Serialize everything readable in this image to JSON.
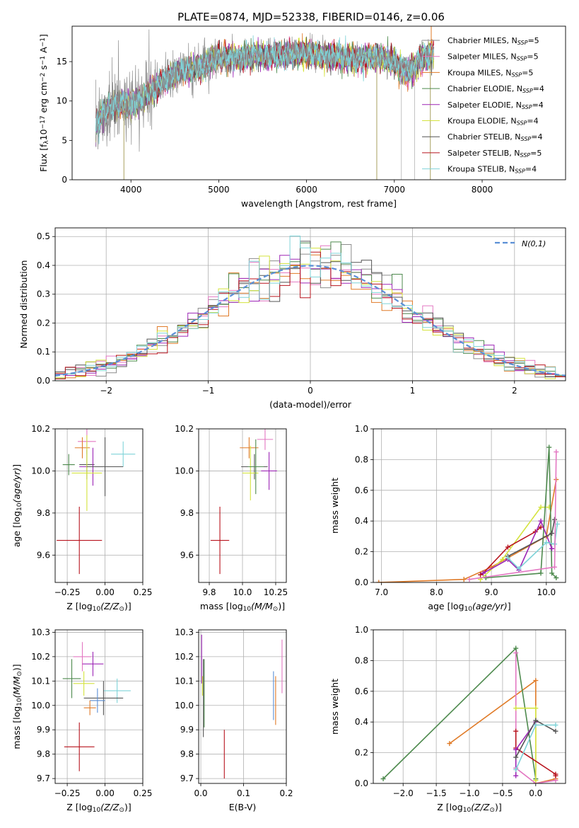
{
  "figure_title": "PLATE=0874, MJD=52338, FIBERID=0146, z=0.06",
  "legend_entries": [
    {
      "label": "Chabrier MILES, N_SSP=5",
      "color": "#8c8c8c"
    },
    {
      "label": "Salpeter MILES, N_SSP=5",
      "color": "#e377c2"
    },
    {
      "label": "Kroupa MILES, N_SSP=5",
      "color": "#e07b28"
    },
    {
      "label": "Chabrier ELODIE, N_SSP=4",
      "color": "#4e8a4e"
    },
    {
      "label": "Salpeter ELODIE, N_SSP=4",
      "color": "#9d26b6"
    },
    {
      "label": "Kroupa ELODIE, N_SSP=4",
      "color": "#d4e33d"
    },
    {
      "label": "Chabrier STELIB, N_SSP=4",
      "color": "#555555"
    },
    {
      "label": "Salpeter STELIB, N_SSP=5",
      "color": "#b8141e"
    },
    {
      "label": "Kroupa STELIB, N_SSP=4",
      "color": "#7fd3d8"
    }
  ],
  "chart_data": [
    {
      "id": "spectrum",
      "type": "line",
      "xlabel": "wavelength [Angstrom, rest frame]",
      "ylabel": "Flux [f_λ 10^-17 erg cm^-2 s^-1 A^-1]",
      "xlim": [
        3330,
        8950
      ],
      "ylim": [
        0,
        19.5
      ],
      "xticks": [
        4000,
        5000,
        6000,
        7000,
        8000
      ],
      "yticks": [
        0,
        5,
        10,
        15
      ],
      "continuum": {
        "x": [
          3600,
          3700,
          3800,
          3900,
          4000,
          4100,
          4200,
          4300,
          4400,
          4500,
          4600,
          4700,
          4800,
          4900,
          5000,
          5200,
          5400,
          5600,
          5800,
          6000,
          6200,
          6400,
          6600,
          6800,
          6900,
          7000,
          7100,
          7200,
          7300,
          7400
        ],
        "y": [
          7.0,
          8.7,
          9.3,
          9.7,
          9.6,
          10.2,
          11.0,
          11.7,
          12.7,
          13.6,
          13.9,
          14.1,
          14.2,
          15.1,
          15.6,
          15.5,
          15.8,
          15.7,
          15.9,
          16.1,
          15.8,
          15.6,
          15.4,
          15.6,
          15.4,
          15.0,
          14.0,
          14.0,
          15.4,
          15.9
        ]
      },
      "spikes_down": [
        3920,
        6800,
        7410
      ],
      "spikes_up": [
        7420
      ]
    },
    {
      "id": "residuals",
      "type": "step",
      "xlabel": "(data-model)/error",
      "ylabel": "Normed distribution",
      "xlim": [
        -2.5,
        2.5
      ],
      "ylim": [
        0,
        0.53
      ],
      "xticks": [
        -2,
        -1,
        0,
        1,
        2
      ],
      "yticks": [
        0.0,
        0.1,
        0.2,
        0.3,
        0.4,
        0.5
      ],
      "gaussian_label": "N(0,1)",
      "gaussian_color": "#5b8fd6",
      "bin_width": 0.1
    },
    {
      "id": "age_vs_Z",
      "type": "errorbar",
      "xlabel": "Z [log10(Z/Z_sun)]",
      "ylabel": "age [log10(age/yr)]",
      "xlim": [
        -0.33,
        0.25
      ],
      "ylim": [
        9.47,
        10.2
      ],
      "xticks": [
        -0.25,
        0.0,
        0.25
      ],
      "yticks": [
        9.6,
        9.8,
        10.0,
        10.2
      ],
      "points": [
        {
          "x": -0.12,
          "y": 10.14,
          "xerr": 0.06,
          "yerr": 0.06,
          "color": "#e377c2"
        },
        {
          "x": -0.15,
          "y": 10.11,
          "xerr": 0.05,
          "yerr": 0.05,
          "color": "#e07b28"
        },
        {
          "x": 0.12,
          "y": 10.08,
          "xerr": 0.08,
          "yerr": 0.06,
          "color": "#7fd3d8"
        },
        {
          "x": -0.24,
          "y": 10.03,
          "xerr": 0.04,
          "yerr": 0.05,
          "color": "#4e8a4e"
        },
        {
          "x": -0.12,
          "y": 10.03,
          "xerr": 0.05,
          "yerr": 0.07,
          "color": "#555555"
        },
        {
          "x": -0.08,
          "y": 10.02,
          "xerr": 0.09,
          "yerr": 0.09,
          "color": "#9d26b6"
        },
        {
          "x": -0.12,
          "y": 9.99,
          "xerr": 0.1,
          "yerr": 0.18,
          "color": "#d4e33d"
        },
        {
          "x": 0.0,
          "y": 10.02,
          "xerr": 0.12,
          "yerr": 0.14,
          "color": "#555555"
        },
        {
          "x": -0.17,
          "y": 9.67,
          "xerr": 0.15,
          "yerr": 0.16,
          "color": "#b8141e"
        }
      ]
    },
    {
      "id": "age_vs_mass",
      "type": "errorbar",
      "xlabel": "mass [log10(M/M_sun)]",
      "ylabel": "",
      "xlim": [
        9.67,
        10.33
      ],
      "ylim": [
        9.47,
        10.2
      ],
      "xticks": [
        9.75,
        10.0,
        10.25
      ],
      "yticks": [
        9.6,
        9.8,
        10.0,
        10.2
      ],
      "points": [
        {
          "x": 10.17,
          "y": 10.15,
          "xerr": 0.06,
          "yerr": 0.05,
          "color": "#e377c2"
        },
        {
          "x": 10.05,
          "y": 10.11,
          "xerr": 0.07,
          "yerr": 0.05,
          "color": "#e07b28"
        },
        {
          "x": 10.09,
          "y": 10.02,
          "xerr": 0.1,
          "yerr": 0.06,
          "color": "#555555"
        },
        {
          "x": 10.2,
          "y": 10.0,
          "xerr": 0.06,
          "yerr": 0.09,
          "color": "#9d26b6"
        },
        {
          "x": 10.06,
          "y": 9.99,
          "xerr": 0.06,
          "yerr": 0.13,
          "color": "#d4e33d"
        },
        {
          "x": 10.1,
          "y": 10.02,
          "xerr": 0.06,
          "yerr": 0.13,
          "color": "#4e8a4e"
        },
        {
          "x": 9.83,
          "y": 9.67,
          "xerr": 0.07,
          "yerr": 0.16,
          "color": "#b8141e"
        }
      ]
    },
    {
      "id": "weight_vs_age",
      "type": "line",
      "xlabel": "age [log10(age/yr)]",
      "ylabel": "mass weight",
      "xlim": [
        6.85,
        10.35
      ],
      "ylim": [
        0,
        1
      ],
      "xticks": [
        7,
        8,
        9,
        10
      ],
      "yticks": [
        0.0,
        0.2,
        0.4,
        0.6,
        0.8,
        1.0
      ],
      "series": [
        {
          "color": "#e07b28",
          "x": [
            6.95,
            8.5,
            9.0,
            10.0,
            10.18
          ],
          "y": [
            0.0,
            0.02,
            0.1,
            0.3,
            0.67
          ]
        },
        {
          "color": "#d4e33d",
          "x": [
            8.8,
            9.2,
            9.9,
            10.05
          ],
          "y": [
            0.02,
            0.15,
            0.49,
            0.49
          ]
        },
        {
          "color": "#4e8a4e",
          "x": [
            8.9,
            9.9,
            10.05,
            10.1,
            10.18
          ],
          "y": [
            0.03,
            0.06,
            0.88,
            0.06,
            0.03
          ]
        },
        {
          "color": "#b8141e",
          "x": [
            8.8,
            8.85,
            9.3,
            9.8,
            9.9
          ],
          "y": [
            0.05,
            0.06,
            0.23,
            0.33,
            0.36
          ]
        },
        {
          "color": "#9d26b6",
          "x": [
            8.85,
            9.3,
            9.5,
            9.9,
            10.1
          ],
          "y": [
            0.06,
            0.15,
            0.08,
            0.4,
            0.22
          ]
        },
        {
          "color": "#555555",
          "x": [
            9.3,
            10.1,
            10.15
          ],
          "y": [
            0.17,
            0.32,
            0.41
          ]
        },
        {
          "color": "#7fd3d8",
          "x": [
            9.3,
            9.5,
            10.0,
            10.15,
            10.2
          ],
          "y": [
            0.16,
            0.09,
            0.26,
            0.25,
            0.38
          ]
        },
        {
          "color": "#e377c2",
          "x": [
            8.6,
            10.15,
            10.18
          ],
          "y": [
            0.02,
            0.1,
            0.85
          ]
        }
      ]
    },
    {
      "id": "mass_vs_Z",
      "type": "errorbar",
      "xlabel": "Z [log10(Z/Z_sun)]",
      "ylabel": "mass [log10(M/M_sun)]",
      "xlim": [
        -0.33,
        0.25
      ],
      "ylim": [
        9.68,
        10.31
      ],
      "xticks": [
        -0.25,
        0.0,
        0.25
      ],
      "yticks": [
        9.7,
        9.8,
        9.9,
        10.0,
        10.1,
        10.2,
        10.3
      ],
      "points": [
        {
          "x": -0.15,
          "y": 10.2,
          "xerr": 0.06,
          "yerr": 0.06,
          "color": "#e377c2"
        },
        {
          "x": -0.08,
          "y": 10.17,
          "xerr": 0.07,
          "yerr": 0.05,
          "color": "#9d26b6"
        },
        {
          "x": -0.22,
          "y": 10.11,
          "xerr": 0.06,
          "yerr": 0.08,
          "color": "#4e8a4e"
        },
        {
          "x": -0.14,
          "y": 10.09,
          "xerr": 0.07,
          "yerr": 0.05,
          "color": "#d4e33d"
        },
        {
          "x": 0.08,
          "y": 10.06,
          "xerr": 0.09,
          "yerr": 0.05,
          "color": "#7fd3d8"
        },
        {
          "x": -0.01,
          "y": 10.03,
          "xerr": 0.13,
          "yerr": 0.07,
          "color": "#555555"
        },
        {
          "x": -0.05,
          "y": 10.02,
          "xerr": 0.05,
          "yerr": 0.05,
          "color": "#5b8fd6"
        },
        {
          "x": -0.1,
          "y": 9.99,
          "xerr": 0.04,
          "yerr": 0.03,
          "color": "#e07b28"
        },
        {
          "x": -0.17,
          "y": 9.83,
          "xerr": 0.1,
          "yerr": 0.1,
          "color": "#b8141e"
        }
      ]
    },
    {
      "id": "mass_vs_ebv",
      "type": "errorbar",
      "xlabel": "E(B-V)",
      "ylabel": "",
      "xlim": [
        -0.005,
        0.2
      ],
      "ylim": [
        9.68,
        10.31
      ],
      "xticks": [
        0.0,
        0.1,
        0.2
      ],
      "yticks": [
        9.7,
        9.8,
        9.9,
        10.0,
        10.1,
        10.2,
        10.3
      ],
      "points": [
        {
          "x": 0.002,
          "y": 10.19,
          "xerr": 0,
          "yerr": 0.1,
          "color": "#9d26b6"
        },
        {
          "x": 0.008,
          "y": 10.05,
          "xerr": 0,
          "yerr": 0.14,
          "color": "#4e8a4e"
        },
        {
          "x": 0.006,
          "y": 10.03,
          "xerr": 0,
          "yerr": 0.16,
          "color": "#555555"
        },
        {
          "x": 0.004,
          "y": 10.08,
          "xerr": 0,
          "yerr": 0.04,
          "color": "#d4e33d"
        },
        {
          "x": 0.055,
          "y": 9.8,
          "xerr": 0,
          "yerr": 0.1,
          "color": "#b8141e"
        },
        {
          "x": 0.17,
          "y": 10.04,
          "xerr": 0,
          "yerr": 0.1,
          "color": "#5b8fd6"
        },
        {
          "x": 0.175,
          "y": 10.02,
          "xerr": 0,
          "yerr": 0.1,
          "color": "#e07b28"
        },
        {
          "x": 0.19,
          "y": 10.16,
          "xerr": 0,
          "yerr": 0.11,
          "color": "#e377c2"
        }
      ]
    },
    {
      "id": "weight_vs_Z",
      "type": "line",
      "xlabel": "Z [log10(Z/Z_sun)]",
      "ylabel": "mass weight",
      "xlim": [
        -2.45,
        0.45
      ],
      "ylim": [
        0,
        1
      ],
      "xticks": [
        -2.0,
        -1.5,
        -1.0,
        -0.5,
        0.0
      ],
      "yticks": [
        0.0,
        0.2,
        0.4,
        0.6,
        0.8,
        1.0
      ],
      "series": [
        {
          "color": "#e07b28",
          "x": [
            -1.3,
            0.0,
            0.0,
            0.3
          ],
          "y": [
            0.26,
            0.67,
            0.0,
            0.03
          ]
        },
        {
          "color": "#4e8a4e",
          "x": [
            -2.3,
            -0.3,
            0.0
          ],
          "y": [
            0.03,
            0.88,
            0.03
          ]
        },
        {
          "color": "#e377c2",
          "x": [
            -0.3,
            -0.3,
            0.0,
            0.3
          ],
          "y": [
            0.85,
            0.1,
            0.0,
            0.02
          ]
        },
        {
          "color": "#d4e33d",
          "x": [
            -0.3,
            0.0,
            0.0
          ],
          "y": [
            0.49,
            0.49,
            0.02
          ]
        },
        {
          "color": "#b8141e",
          "x": [
            -0.3,
            -0.3,
            0.3,
            0.3
          ],
          "y": [
            0.34,
            0.23,
            0.06,
            0.05
          ]
        },
        {
          "color": "#9d26b6",
          "x": [
            -0.3,
            -0.3,
            0.0
          ],
          "y": [
            0.05,
            0.22,
            0.4
          ]
        },
        {
          "color": "#555555",
          "x": [
            -0.3,
            0.0,
            0.3
          ],
          "y": [
            0.17,
            0.41,
            0.34
          ]
        },
        {
          "color": "#7fd3d8",
          "x": [
            -0.3,
            0.0,
            0.3
          ],
          "y": [
            0.09,
            0.38,
            0.38
          ]
        }
      ]
    }
  ]
}
